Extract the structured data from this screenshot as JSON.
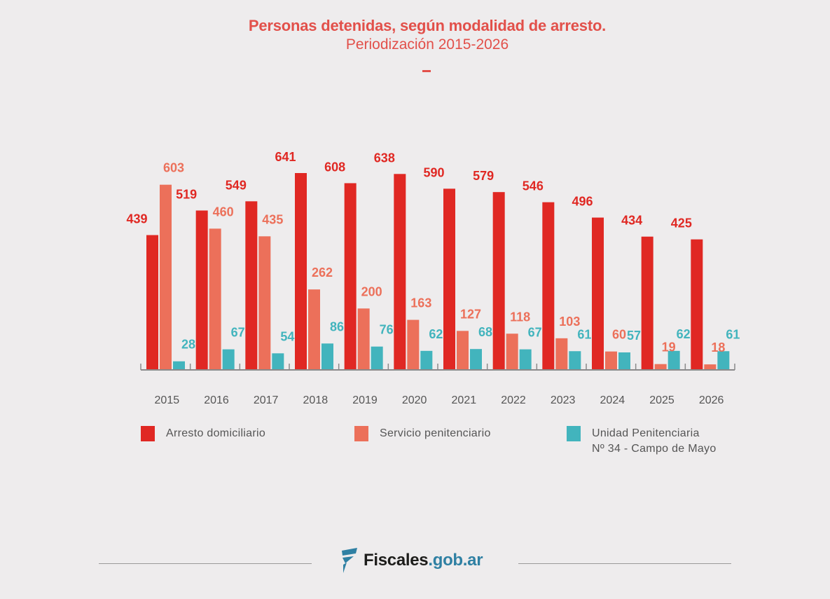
{
  "header": {
    "title": "Personas detenidas, según modalidad de arresto.",
    "subtitle": "Periodización 2015-2026"
  },
  "colors": {
    "arresto_domiciliario": "#e02823",
    "servicio_penitenciario": "#ec705a",
    "unidad_penitenciaria": "#42b4bd",
    "text_accent": "#e2504a"
  },
  "chart_data": {
    "type": "bar",
    "title": "Personas detenidas, según modalidad de arresto.",
    "subtitle": "Periodización 2015-2026",
    "xlabel": "",
    "ylabel": "",
    "categories": [
      "2015",
      "2016",
      "2017",
      "2018",
      "2019",
      "2020",
      "2021",
      "2022",
      "2023",
      "2024",
      "2025",
      "2026"
    ],
    "series": [
      {
        "name": "Arresto domiciliario",
        "values": [
          439,
          519,
          549,
          641,
          608,
          638,
          590,
          579,
          546,
          496,
          434,
          425
        ]
      },
      {
        "name": "Servicio penitenciario",
        "values": [
          603,
          460,
          435,
          262,
          200,
          163,
          127,
          118,
          103,
          60,
          19,
          18
        ]
      },
      {
        "name": "Unidad Penitenciaria Nº 34 - Campo de Mayo",
        "values": [
          28,
          67,
          54,
          86,
          76,
          62,
          68,
          67,
          61,
          57,
          62,
          61
        ]
      }
    ],
    "ylim": [
      0,
      641
    ],
    "grid": false,
    "data_labels": true,
    "legend_position": "bottom"
  },
  "legend": {
    "items": [
      {
        "label_line1": "Arresto domiciliario",
        "label_line2": ""
      },
      {
        "label_line1": "Servicio penitenciario",
        "label_line2": ""
      },
      {
        "label_line1": "Unidad Penitenciaria",
        "label_line2": "Nº 34 - Campo de Mayo"
      }
    ]
  },
  "footer": {
    "logo_name": "Fiscales",
    "logo_domain": ".gob.ar"
  }
}
